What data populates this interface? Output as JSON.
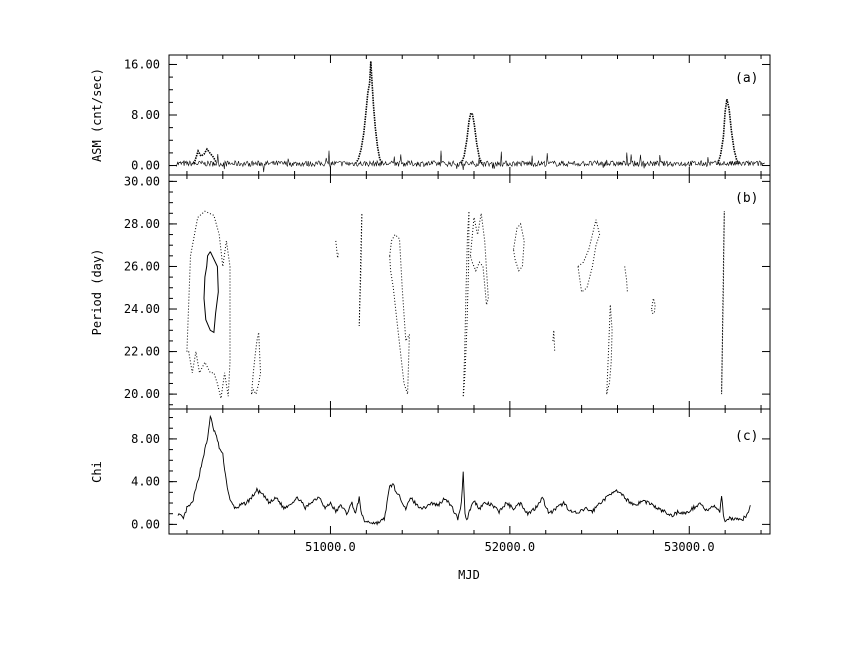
{
  "chart_data": [
    {
      "panel": "a",
      "type": "line",
      "tag": "(a)",
      "xlabel": "",
      "ylabel": "ASM (cnt/sec)",
      "xlim": [
        50100,
        53450
      ],
      "ylim": [
        -1.5,
        17.5
      ],
      "yticks": [
        "0.00",
        "8.00",
        "16.00"
      ],
      "ytick_values": [
        0,
        8,
        16
      ],
      "baseline": 0.3,
      "flares": [
        {
          "x": [
            50240,
            50250,
            50262,
            50278,
            50295,
            50312,
            50330,
            50348,
            50365
          ],
          "y": [
            0.3,
            1.2,
            2.3,
            1.5,
            1.8,
            2.6,
            1.9,
            1.3,
            0.4
          ]
        },
        {
          "x": [
            51140,
            51155,
            51170,
            51185,
            51198,
            51208,
            51218,
            51225,
            51232,
            51240,
            51250,
            51262,
            51275,
            51290
          ],
          "y": [
            0.3,
            1.0,
            2.5,
            5.0,
            8.5,
            11.5,
            13.0,
            16.5,
            13.0,
            9.5,
            6.0,
            3.0,
            1.0,
            0.3
          ]
        },
        {
          "x": [
            51730,
            51745,
            51760,
            51772,
            51782,
            51792,
            51802,
            51815,
            51830,
            51845
          ],
          "y": [
            0.3,
            1.5,
            4.0,
            7.0,
            8.3,
            8.1,
            6.5,
            3.5,
            1.2,
            0.3
          ]
        },
        {
          "x": [
            53160,
            53175,
            53190,
            53200,
            53210,
            53222,
            53235,
            53250,
            53265,
            53280
          ],
          "y": [
            0.3,
            1.8,
            4.5,
            8.5,
            10.5,
            9.0,
            5.5,
            2.5,
            0.8,
            0.3
          ]
        }
      ]
    },
    {
      "panel": "b",
      "type": "contour",
      "tag": "(b)",
      "xlabel": "",
      "ylabel": "Period (day)",
      "xlim": [
        50100,
        53450
      ],
      "ylim": [
        19.3,
        30.3
      ],
      "yticks": [
        "20.00",
        "22.00",
        "24.00",
        "26.00",
        "28.00",
        "30.00"
      ],
      "ytick_values": [
        20,
        22,
        24,
        26,
        28,
        30
      ],
      "solid_contours": [
        {
          "x": [
            50330,
            50370,
            50375,
            50360,
            50350,
            50330,
            50305,
            50295,
            50300,
            50310,
            50315,
            50330
          ],
          "y": [
            26.7,
            26.0,
            24.8,
            23.8,
            22.9,
            23.0,
            23.5,
            24.5,
            25.5,
            26.0,
            26.5,
            26.7
          ]
        }
      ],
      "dotted_contours": [
        {
          "x": [
            50200,
            50220,
            50260,
            50300,
            50350,
            50380,
            50400,
            50420,
            50440,
            50440,
            50430,
            50410,
            50390,
            50370,
            50350,
            50330,
            50300,
            50270,
            50250,
            50230,
            50210,
            50200
          ],
          "y": [
            22.0,
            26.5,
            28.3,
            28.6,
            28.4,
            27.5,
            26.0,
            27.2,
            26.0,
            21.5,
            19.9,
            21.0,
            19.8,
            20.5,
            21.0,
            21.0,
            21.5,
            21.0,
            22.0,
            21.0,
            22.0,
            22.0
          ]
        },
        {
          "x": [
            50560,
            50570,
            50580,
            50590,
            50600,
            50610,
            50600,
            50585,
            50570,
            50560
          ],
          "y": [
            20.0,
            21.0,
            21.8,
            22.5,
            22.9,
            21.0,
            20.5,
            20.0,
            20.2,
            20.0
          ]
        },
        {
          "x": [
            51030,
            51035,
            51040,
            51045
          ],
          "y": [
            27.2,
            26.8,
            26.4,
            26.6
          ]
        },
        {
          "x": [
            51160,
            51165,
            51170,
            51175,
            51170,
            51160
          ],
          "y": [
            23.2,
            25.0,
            27.0,
            28.5,
            26.0,
            23.2
          ]
        },
        {
          "x": [
            51330,
            51340,
            51360,
            51385,
            51400,
            51420,
            51440,
            51430,
            51410,
            51390,
            51370,
            51350,
            51335,
            51330
          ],
          "y": [
            26.5,
            27.2,
            27.5,
            27.3,
            25.0,
            22.5,
            22.8,
            20.0,
            20.5,
            22.0,
            23.5,
            25.0,
            25.8,
            26.5
          ]
        },
        {
          "x": [
            51740,
            51748,
            51756,
            51764,
            51772,
            51770,
            51760,
            51750,
            51742,
            51740
          ],
          "y": [
            19.9,
            22.0,
            25.0,
            27.5,
            28.6,
            26.0,
            23.0,
            21.0,
            20.0,
            19.9
          ]
        },
        {
          "x": [
            51780,
            51800,
            51820,
            51840,
            51860,
            51880,
            51870,
            51850,
            51830,
            51810,
            51790,
            51780
          ],
          "y": [
            26.5,
            28.3,
            27.5,
            28.5,
            27.2,
            24.5,
            24.2,
            26.0,
            26.2,
            25.8,
            26.2,
            26.5
          ]
        },
        {
          "x": [
            52020,
            52040,
            52060,
            52080,
            52070,
            52050,
            52030,
            52020
          ],
          "y": [
            26.8,
            27.8,
            28.0,
            27.2,
            26.0,
            25.8,
            26.3,
            26.8
          ]
        },
        {
          "x": [
            52240,
            52245,
            52250
          ],
          "y": [
            22.5,
            23.0,
            22.0
          ]
        },
        {
          "x": [
            52380,
            52410,
            52440,
            52460,
            52480,
            52500,
            52480,
            52460,
            52430,
            52400,
            52380
          ],
          "y": [
            26.0,
            26.2,
            26.8,
            27.5,
            28.2,
            27.5,
            27.0,
            26.0,
            25.0,
            24.8,
            26.0
          ]
        },
        {
          "x": [
            52540,
            52550,
            52560,
            52570,
            52565,
            52555,
            52545,
            52540
          ],
          "y": [
            20.0,
            22.0,
            24.2,
            23.0,
            21.5,
            20.5,
            20.2,
            20.0
          ]
        },
        {
          "x": [
            52640,
            52650,
            52655
          ],
          "y": [
            26.0,
            25.4,
            24.8
          ]
        },
        {
          "x": [
            52790,
            52800,
            52810,
            52805,
            52795,
            52790
          ],
          "y": [
            24.0,
            24.5,
            24.2,
            23.8,
            23.8,
            24.0
          ]
        },
        {
          "x": [
            53180,
            53185,
            53190,
            53195,
            53190,
            53180
          ],
          "y": [
            20.0,
            23.0,
            26.0,
            28.6,
            25.0,
            20.0
          ]
        }
      ]
    },
    {
      "panel": "c",
      "type": "line",
      "tag": "(c)",
      "xlabel": "MJD",
      "ylabel": "Chi",
      "xlim": [
        50100,
        53450
      ],
      "ylim": [
        -0.9,
        10.8
      ],
      "xticks": [
        "51000.0",
        "52000.0",
        "53000.0"
      ],
      "xtick_values": [
        51000,
        52000,
        53000
      ],
      "yticks": [
        "0.00",
        "4.00",
        "8.00"
      ],
      "ytick_values": [
        0,
        4,
        8
      ],
      "x": [
        50150,
        50180,
        50200,
        50230,
        50260,
        50280,
        50300,
        50315,
        50330,
        50345,
        50360,
        50380,
        50400,
        50420,
        50440,
        50470,
        50500,
        50530,
        50560,
        50590,
        50620,
        50660,
        50700,
        50740,
        50780,
        50820,
        50860,
        50900,
        50940,
        50970,
        51000,
        51030,
        51060,
        51090,
        51120,
        51140,
        51160,
        51175,
        51190,
        51220,
        51260,
        51300,
        51330,
        51350,
        51370,
        51390,
        51420,
        51450,
        51480,
        51520,
        51560,
        51600,
        51640,
        51680,
        51710,
        51730,
        51740,
        51750,
        51760,
        51780,
        51800,
        51830,
        51860,
        51900,
        51940,
        51980,
        52020,
        52060,
        52100,
        52140,
        52180,
        52220,
        52260,
        52300,
        52340,
        52380,
        52420,
        52460,
        52500,
        52540,
        52580,
        52620,
        52660,
        52700,
        52740,
        52780,
        52820,
        52860,
        52900,
        52940,
        52980,
        53020,
        53060,
        53100,
        53140,
        53170,
        53180,
        53190,
        53200,
        53230,
        53260,
        53290,
        53320,
        53340
      ],
      "y": [
        1.0,
        0.5,
        1.5,
        2.0,
        4.0,
        5.5,
        7.0,
        8.0,
        10.2,
        9.0,
        8.5,
        7.2,
        6.5,
        4.0,
        2.2,
        1.5,
        1.8,
        2.0,
        2.5,
        3.2,
        2.8,
        2.0,
        2.5,
        1.5,
        2.0,
        2.5,
        1.5,
        2.2,
        2.6,
        1.5,
        2.0,
        1.2,
        1.8,
        1.0,
        2.0,
        1.0,
        2.5,
        0.8,
        0.3,
        0.2,
        0.1,
        0.5,
        3.5,
        3.8,
        2.8,
        2.5,
        1.5,
        2.5,
        1.8,
        1.5,
        2.0,
        1.8,
        2.5,
        1.5,
        0.5,
        2.0,
        5.0,
        1.0,
        0.4,
        1.5,
        2.2,
        1.5,
        2.0,
        1.8,
        1.2,
        2.0,
        1.5,
        2.0,
        1.0,
        1.5,
        2.5,
        1.0,
        1.5,
        2.0,
        1.2,
        1.0,
        1.5,
        1.2,
        2.0,
        2.5,
        3.2,
        2.8,
        2.2,
        1.8,
        2.2,
        2.0,
        1.5,
        1.2,
        0.8,
        1.2,
        1.0,
        1.5,
        2.0,
        1.2,
        1.8,
        1.0,
        2.8,
        0.8,
        0.4,
        0.6,
        0.5,
        0.4,
        0.8,
        1.8
      ]
    }
  ]
}
